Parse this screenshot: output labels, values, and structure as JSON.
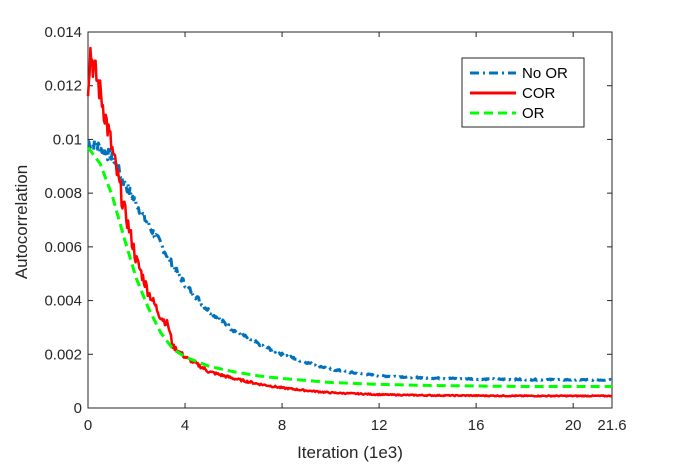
{
  "chart_data": {
    "type": "line",
    "xlabel": "Iteration (1e3)",
    "ylabel": "Autocorrelation",
    "xlim": [
      0,
      21.6
    ],
    "ylim": [
      0,
      0.014
    ],
    "xticks": [
      "0",
      "4",
      "8",
      "12",
      "16",
      "20",
      "21.6"
    ],
    "xtick_values": [
      0,
      4,
      8,
      12,
      16,
      20,
      21.6
    ],
    "yticks": [
      "0",
      "0.002",
      "0.004",
      "0.006",
      "0.008",
      "0.01",
      "0.012",
      "0.014"
    ],
    "ytick_values": [
      0,
      0.002,
      0.004,
      0.006,
      0.008,
      0.01,
      0.012,
      0.014
    ],
    "grid": false,
    "legend_position": "top-right",
    "series": [
      {
        "name": "No OR",
        "color": "#0072BD",
        "style": "dashdot",
        "x": [
          0,
          0.5,
          1,
          1.5,
          2,
          2.5,
          3,
          3.5,
          4,
          5,
          6,
          7,
          8,
          9,
          10,
          11,
          12,
          14,
          16,
          18,
          20,
          21.6
        ],
        "y": [
          0.0099,
          0.0097,
          0.0093,
          0.0084,
          0.0076,
          0.0068,
          0.0061,
          0.0053,
          0.0046,
          0.0036,
          0.0029,
          0.0024,
          0.002,
          0.0017,
          0.00145,
          0.0013,
          0.0012,
          0.00112,
          0.00108,
          0.00106,
          0.00105,
          0.00105
        ]
      },
      {
        "name": "COR",
        "color": "#FF0000",
        "style": "solid",
        "x": [
          0,
          0.1,
          0.2,
          0.5,
          1,
          1.5,
          2,
          2.5,
          3,
          3.3,
          3.5,
          4,
          5,
          6,
          7,
          8,
          9,
          10,
          12,
          14,
          16,
          18,
          20,
          21.6
        ],
        "y": [
          0.0121,
          0.0133,
          0.0128,
          0.0118,
          0.0096,
          0.0074,
          0.0055,
          0.0043,
          0.0034,
          0.0031,
          0.0023,
          0.0019,
          0.00135,
          0.0011,
          0.0009,
          0.00075,
          0.00065,
          0.00057,
          0.0005,
          0.00047,
          0.00046,
          0.00045,
          0.00045,
          0.00045
        ]
      },
      {
        "name": "OR",
        "color": "#00FF00",
        "style": "dashed",
        "x": [
          0,
          0.5,
          1,
          1.5,
          2,
          2.5,
          3,
          3.5,
          4,
          5,
          6,
          7,
          8,
          10,
          12,
          14,
          16,
          18,
          20,
          21.6
        ],
        "y": [
          0.0097,
          0.0091,
          0.0079,
          0.0063,
          0.0048,
          0.0037,
          0.0028,
          0.0022,
          0.0019,
          0.00155,
          0.00135,
          0.0012,
          0.0011,
          0.00095,
          0.00088,
          0.00084,
          0.00082,
          0.0008,
          0.0008,
          0.0008
        ]
      }
    ]
  }
}
